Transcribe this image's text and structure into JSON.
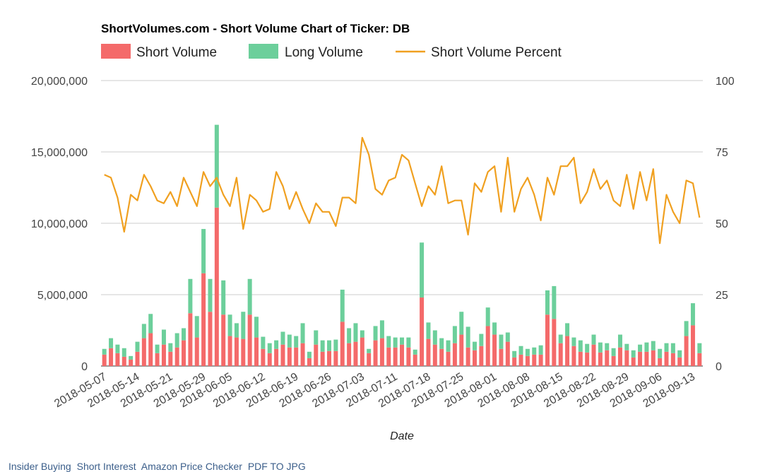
{
  "chart_data": {
    "type": "bar+line",
    "title": "ShortVolumes.com - Short Volume Chart of Ticker: DB",
    "xlabel": "Date",
    "ylabel_left": "",
    "ylabel_right": "",
    "ylim": [
      0,
      20000000
    ],
    "ylim_right": [
      0,
      100
    ],
    "y_ticks": [
      "0",
      "5,000,000",
      "10,000,000",
      "15,000,000",
      "20,000,000"
    ],
    "y_tick_values": [
      0,
      5000000,
      10000000,
      15000000,
      20000000
    ],
    "y2_ticks": [
      "0",
      "25",
      "50",
      "75",
      "100"
    ],
    "y2_tick_values": [
      0,
      25,
      50,
      75,
      100
    ],
    "x_tick_labels": [
      "2018-05-07",
      "2018-05-14",
      "2018-05-21",
      "2018-05-29",
      "2018-06-05",
      "2018-06-12",
      "2018-06-19",
      "2018-06-26",
      "2018-07-03",
      "2018-07-11",
      "2018-07-18",
      "2018-07-25",
      "2018-08-01",
      "2018-08-08",
      "2018-08-15",
      "2018-08-22",
      "2018-08-29",
      "2018-09-06",
      "2018-09-13"
    ],
    "x_tick_indices": [
      0,
      5,
      10,
      15,
      19,
      24,
      29,
      34,
      39,
      44,
      49,
      54,
      59,
      64,
      69,
      74,
      79,
      84,
      89
    ],
    "legend": [
      {
        "label": "Short Volume",
        "color": "#f46a6a",
        "kind": "box"
      },
      {
        "label": "Long Volume",
        "color": "#6ccf9b",
        "kind": "box"
      },
      {
        "label": "Short Volume Percent",
        "color": "#f0a020",
        "kind": "line"
      }
    ],
    "grid": true,
    "short_volume": [
      800000,
      1250000,
      900000,
      650000,
      450000,
      1000000,
      1950000,
      2300000,
      900000,
      1500000,
      1000000,
      1300000,
      1800000,
      3700000,
      2000000,
      6500000,
      3800000,
      11100000,
      3600000,
      2100000,
      2000000,
      1900000,
      3600000,
      2000000,
      1200000,
      900000,
      1200000,
      1500000,
      1300000,
      1300000,
      1600000,
      550000,
      1500000,
      1000000,
      1050000,
      1050000,
      3100000,
      1600000,
      1700000,
      2000000,
      900000,
      1800000,
      1950000,
      1300000,
      1300000,
      1500000,
      1300000,
      800000,
      4800000,
      1900000,
      1500000,
      1200000,
      1000000,
      1600000,
      2200000,
      1300000,
      1100000,
      1400000,
      2800000,
      2200000,
      1200000,
      1700000,
      600000,
      800000,
      700000,
      800000,
      800000,
      3600000,
      3300000,
      1600000,
      2100000,
      1400000,
      1000000,
      950000,
      1500000,
      950000,
      1100000,
      700000,
      1300000,
      1100000,
      600000,
      1000000,
      1000000,
      1100000,
      550000,
      1000000,
      900000,
      600000,
      2100000,
      2850000,
      900000
    ],
    "long_volume": [
      400000,
      700000,
      600000,
      600000,
      250000,
      700000,
      1000000,
      1350000,
      600000,
      1050000,
      600000,
      1000000,
      850000,
      2400000,
      1500000,
      3100000,
      2300000,
      5800000,
      2400000,
      1500000,
      1000000,
      1900000,
      2500000,
      1450000,
      850000,
      700000,
      600000,
      900000,
      900000,
      800000,
      1400000,
      450000,
      1000000,
      800000,
      750000,
      800000,
      2250000,
      1050000,
      1300000,
      500000,
      300000,
      1000000,
      1250000,
      800000,
      700000,
      500000,
      700000,
      350000,
      3850000,
      1150000,
      1000000,
      750000,
      800000,
      1200000,
      1600000,
      1450000,
      600000,
      850000,
      1300000,
      850000,
      1000000,
      650000,
      450000,
      600000,
      500000,
      500000,
      650000,
      1700000,
      2300000,
      600000,
      900000,
      600000,
      800000,
      600000,
      700000,
      700000,
      500000,
      550000,
      900000,
      450000,
      500000,
      500000,
      650000,
      650000,
      650000,
      600000,
      700000,
      500000,
      1050000,
      1550000,
      700000
    ],
    "short_percent": [
      67,
      66,
      59,
      47,
      60,
      58,
      67,
      63,
      58,
      57,
      61,
      56,
      66,
      61,
      56,
      68,
      63,
      66,
      60,
      56,
      66,
      48,
      60,
      58,
      54,
      55,
      68,
      63,
      55,
      61,
      55,
      50,
      57,
      54,
      54,
      49,
      59,
      59,
      57,
      80,
      74,
      62,
      60,
      65,
      66,
      74,
      72,
      64,
      56,
      63,
      60,
      70,
      57,
      58,
      58,
      46,
      64,
      61,
      68,
      70,
      54,
      73,
      54,
      62,
      66,
      60,
      51,
      66,
      60,
      70,
      70,
      73,
      57,
      61,
      69,
      62,
      65,
      58,
      56,
      67,
      55,
      68,
      58,
      69,
      43,
      60,
      54,
      50,
      65,
      64,
      52
    ]
  },
  "footer": {
    "link1": "Insider Buying",
    "link2": "Short Interest",
    "link3": "Amazon Price Checker",
    "link4": "PDF TO JPG"
  }
}
